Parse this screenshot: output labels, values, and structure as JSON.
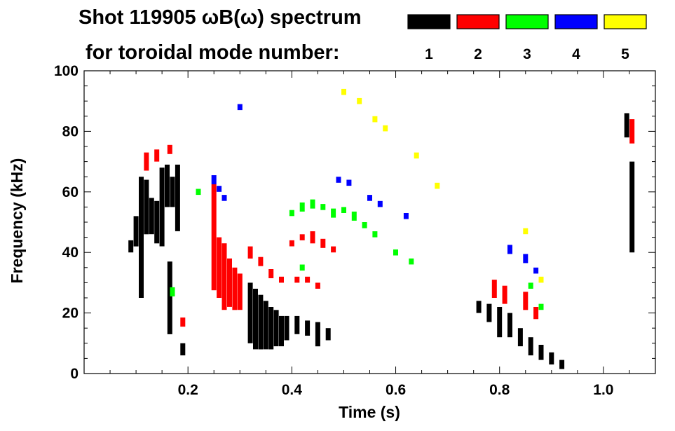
{
  "chart_data": {
    "type": "scatter",
    "title_line1": "Shot 119905 ωB(ω) spectrum",
    "title_line2": "for toroidal mode number:",
    "xlabel": "Time (s)",
    "ylabel": "Frequency (kHz)",
    "xlim": [
      0.0,
      1.1
    ],
    "ylim": [
      0,
      100
    ],
    "x_ticks": [
      {
        "value": 0.2,
        "label": "0.2"
      },
      {
        "value": 0.4,
        "label": "0.4"
      },
      {
        "value": 0.6,
        "label": "0.6"
      },
      {
        "value": 0.8,
        "label": "0.8"
      },
      {
        "value": 1.0,
        "label": "1.0"
      }
    ],
    "y_ticks": [
      {
        "value": 0,
        "label": "0"
      },
      {
        "value": 20,
        "label": "20"
      },
      {
        "value": 40,
        "label": "40"
      },
      {
        "value": 60,
        "label": "60"
      },
      {
        "value": 80,
        "label": "80"
      },
      {
        "value": 100,
        "label": "100"
      }
    ],
    "legend": [
      {
        "label": "1",
        "color": "#000000"
      },
      {
        "label": "2",
        "color": "#ff0000"
      },
      {
        "label": "3",
        "color": "#00ff00"
      },
      {
        "label": "4",
        "color": "#0000ff"
      },
      {
        "label": "5",
        "color": "#ffff00"
      }
    ],
    "series": [
      {
        "name": "1",
        "color": "#000000",
        "points": [
          {
            "x": 0.09,
            "y": 42,
            "dy": 4
          },
          {
            "x": 0.1,
            "y": 47,
            "dy": 10
          },
          {
            "x": 0.11,
            "y": 45,
            "dy": 40
          },
          {
            "x": 0.12,
            "y": 55,
            "dy": 18
          },
          {
            "x": 0.13,
            "y": 52,
            "dy": 12
          },
          {
            "x": 0.14,
            "y": 50,
            "dy": 14
          },
          {
            "x": 0.15,
            "y": 55,
            "dy": 26
          },
          {
            "x": 0.16,
            "y": 62,
            "dy": 14
          },
          {
            "x": 0.17,
            "y": 60,
            "dy": 10
          },
          {
            "x": 0.18,
            "y": 58,
            "dy": 22
          },
          {
            "x": 0.165,
            "y": 25,
            "dy": 24
          },
          {
            "x": 0.19,
            "y": 8,
            "dy": 4
          },
          {
            "x": 0.32,
            "y": 20,
            "dy": 20
          },
          {
            "x": 0.33,
            "y": 18,
            "dy": 20
          },
          {
            "x": 0.34,
            "y": 17,
            "dy": 18
          },
          {
            "x": 0.35,
            "y": 16,
            "dy": 16
          },
          {
            "x": 0.36,
            "y": 15,
            "dy": 14
          },
          {
            "x": 0.37,
            "y": 15,
            "dy": 12
          },
          {
            "x": 0.38,
            "y": 14,
            "dy": 10
          },
          {
            "x": 0.39,
            "y": 15,
            "dy": 8
          },
          {
            "x": 0.41,
            "y": 16,
            "dy": 6
          },
          {
            "x": 0.43,
            "y": 15,
            "dy": 5
          },
          {
            "x": 0.45,
            "y": 13,
            "dy": 8
          },
          {
            "x": 0.47,
            "y": 13,
            "dy": 4
          },
          {
            "x": 0.76,
            "y": 22,
            "dy": 4
          },
          {
            "x": 0.78,
            "y": 20,
            "dy": 6
          },
          {
            "x": 0.8,
            "y": 17,
            "dy": 10
          },
          {
            "x": 0.82,
            "y": 16,
            "dy": 8
          },
          {
            "x": 0.84,
            "y": 12,
            "dy": 6
          },
          {
            "x": 0.86,
            "y": 9,
            "dy": 6
          },
          {
            "x": 0.88,
            "y": 7,
            "dy": 5
          },
          {
            "x": 0.9,
            "y": 5,
            "dy": 4
          },
          {
            "x": 0.92,
            "y": 3,
            "dy": 3
          },
          {
            "x": 1.045,
            "y": 82,
            "dy": 8
          },
          {
            "x": 1.055,
            "y": 55,
            "dy": 30
          }
        ]
      },
      {
        "name": "2",
        "color": "#ff0000",
        "points": [
          {
            "x": 0.12,
            "y": 70,
            "dy": 6
          },
          {
            "x": 0.14,
            "y": 72,
            "dy": 4
          },
          {
            "x": 0.165,
            "y": 74,
            "dy": 3
          },
          {
            "x": 0.19,
            "y": 17,
            "dy": 3
          },
          {
            "x": 0.25,
            "y": 45,
            "dy": 35
          },
          {
            "x": 0.26,
            "y": 35,
            "dy": 20
          },
          {
            "x": 0.27,
            "y": 32,
            "dy": 22
          },
          {
            "x": 0.28,
            "y": 30,
            "dy": 16
          },
          {
            "x": 0.29,
            "y": 28,
            "dy": 14
          },
          {
            "x": 0.3,
            "y": 27,
            "dy": 12
          },
          {
            "x": 0.32,
            "y": 40,
            "dy": 4
          },
          {
            "x": 0.34,
            "y": 37,
            "dy": 3
          },
          {
            "x": 0.36,
            "y": 33,
            "dy": 3
          },
          {
            "x": 0.38,
            "y": 31,
            "dy": 2
          },
          {
            "x": 0.41,
            "y": 31,
            "dy": 2
          },
          {
            "x": 0.43,
            "y": 31,
            "dy": 2
          },
          {
            "x": 0.45,
            "y": 29,
            "dy": 2
          },
          {
            "x": 0.4,
            "y": 43,
            "dy": 2
          },
          {
            "x": 0.42,
            "y": 45,
            "dy": 2
          },
          {
            "x": 0.44,
            "y": 45,
            "dy": 4
          },
          {
            "x": 0.46,
            "y": 43,
            "dy": 3
          },
          {
            "x": 0.48,
            "y": 41,
            "dy": 2
          },
          {
            "x": 0.79,
            "y": 28,
            "dy": 6
          },
          {
            "x": 0.81,
            "y": 26,
            "dy": 6
          },
          {
            "x": 0.85,
            "y": 24,
            "dy": 6
          },
          {
            "x": 0.87,
            "y": 20,
            "dy": 4
          },
          {
            "x": 1.055,
            "y": 80,
            "dy": 8
          }
        ]
      },
      {
        "name": "3",
        "color": "#00ff00",
        "points": [
          {
            "x": 0.17,
            "y": 27,
            "dy": 3
          },
          {
            "x": 0.22,
            "y": 60,
            "dy": 2
          },
          {
            "x": 0.4,
            "y": 53,
            "dy": 2
          },
          {
            "x": 0.42,
            "y": 55,
            "dy": 3
          },
          {
            "x": 0.44,
            "y": 56,
            "dy": 3
          },
          {
            "x": 0.46,
            "y": 55,
            "dy": 2
          },
          {
            "x": 0.48,
            "y": 53,
            "dy": 3
          },
          {
            "x": 0.5,
            "y": 54,
            "dy": 2
          },
          {
            "x": 0.52,
            "y": 52,
            "dy": 3
          },
          {
            "x": 0.54,
            "y": 49,
            "dy": 2
          },
          {
            "x": 0.56,
            "y": 46,
            "dy": 2
          },
          {
            "x": 0.6,
            "y": 40,
            "dy": 2
          },
          {
            "x": 0.63,
            "y": 37,
            "dy": 2
          },
          {
            "x": 0.42,
            "y": 35,
            "dy": 2
          },
          {
            "x": 0.86,
            "y": 29,
            "dy": 2
          },
          {
            "x": 0.88,
            "y": 22,
            "dy": 2
          }
        ]
      },
      {
        "name": "4",
        "color": "#0000ff",
        "points": [
          {
            "x": 0.25,
            "y": 64,
            "dy": 3
          },
          {
            "x": 0.26,
            "y": 61,
            "dy": 2
          },
          {
            "x": 0.27,
            "y": 58,
            "dy": 2
          },
          {
            "x": 0.3,
            "y": 88,
            "dy": 2
          },
          {
            "x": 0.49,
            "y": 64,
            "dy": 2
          },
          {
            "x": 0.51,
            "y": 63,
            "dy": 2
          },
          {
            "x": 0.55,
            "y": 58,
            "dy": 2
          },
          {
            "x": 0.57,
            "y": 56,
            "dy": 2
          },
          {
            "x": 0.62,
            "y": 52,
            "dy": 2
          },
          {
            "x": 0.82,
            "y": 41,
            "dy": 3
          },
          {
            "x": 0.85,
            "y": 38,
            "dy": 3
          },
          {
            "x": 0.87,
            "y": 34,
            "dy": 2
          }
        ]
      },
      {
        "name": "5",
        "color": "#ffff00",
        "points": [
          {
            "x": 0.5,
            "y": 93,
            "dy": 2
          },
          {
            "x": 0.53,
            "y": 90,
            "dy": 2
          },
          {
            "x": 0.56,
            "y": 84,
            "dy": 2
          },
          {
            "x": 0.58,
            "y": 81,
            "dy": 2
          },
          {
            "x": 0.64,
            "y": 72,
            "dy": 2
          },
          {
            "x": 0.68,
            "y": 62,
            "dy": 2
          },
          {
            "x": 0.85,
            "y": 47,
            "dy": 2
          },
          {
            "x": 0.88,
            "y": 31,
            "dy": 2
          }
        ]
      }
    ]
  }
}
